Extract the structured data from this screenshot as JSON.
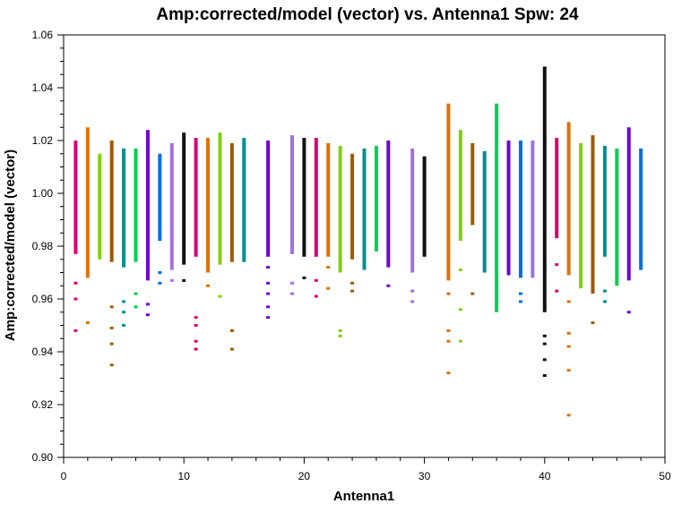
{
  "chart_data": {
    "type": "scatter",
    "title": "Amp:corrected/model (vector) vs. Antenna1 Spw: 24",
    "xlabel": "Antenna1",
    "ylabel": "Amp:corrected/model (vector)",
    "xlim": [
      0,
      50
    ],
    "ylim": [
      0.9,
      1.06
    ],
    "x_ticks": [
      "0",
      "10",
      "20",
      "30",
      "40",
      "50"
    ],
    "y_ticks": [
      "0.90",
      "0.92",
      "0.94",
      "0.96",
      "0.98",
      "1.00",
      "1.02",
      "1.04",
      "1.06"
    ],
    "grid": false,
    "antennas": [
      {
        "x": 1,
        "color": "#d9006e",
        "bar": [
          0.977,
          1.02
        ],
        "points": [
          0.948,
          0.96,
          0.966
        ]
      },
      {
        "x": 2,
        "color": "#e07000",
        "bar": [
          0.968,
          1.025
        ],
        "points": [
          0.951
        ]
      },
      {
        "x": 3,
        "color": "#80d010",
        "bar": [
          0.975,
          1.015
        ],
        "points": []
      },
      {
        "x": 4,
        "color": "#a05a00",
        "bar": [
          0.974,
          1.02
        ],
        "points": [
          0.935,
          0.943,
          0.949,
          0.957
        ]
      },
      {
        "x": 5,
        "color": "#009090",
        "bar": [
          0.972,
          1.017
        ],
        "points": [
          0.95,
          0.955,
          0.959
        ]
      },
      {
        "x": 6,
        "color": "#00d050",
        "bar": [
          0.974,
          1.017
        ],
        "points": [
          0.957,
          0.962
        ]
      },
      {
        "x": 7,
        "color": "#7000d0",
        "bar": [
          0.967,
          1.024
        ],
        "points": [
          0.954,
          0.958
        ]
      },
      {
        "x": 8,
        "color": "#0070e0",
        "bar": [
          0.982,
          1.015
        ],
        "points": [
          0.966,
          0.97
        ]
      },
      {
        "x": 9,
        "color": "#a070e0",
        "bar": [
          0.971,
          1.019
        ],
        "points": [
          0.967
        ]
      },
      {
        "x": 10,
        "color": "#111111",
        "bar": [
          0.973,
          1.023
        ],
        "points": [
          0.967
        ]
      },
      {
        "x": 11,
        "color": "#d9006e",
        "bar": [
          0.976,
          1.021
        ],
        "points": [
          0.941,
          0.944,
          0.95,
          0.953
        ]
      },
      {
        "x": 12,
        "color": "#e07000",
        "bar": [
          0.97,
          1.021
        ],
        "points": [
          0.965
        ]
      },
      {
        "x": 13,
        "color": "#80d010",
        "bar": [
          0.973,
          1.023
        ],
        "points": [
          0.961
        ]
      },
      {
        "x": 14,
        "color": "#a05a00",
        "bar": [
          0.974,
          1.019
        ],
        "points": [
          0.941,
          0.948
        ]
      },
      {
        "x": 15,
        "color": "#009090",
        "bar": [
          0.974,
          1.021
        ],
        "points": []
      },
      {
        "x": 17,
        "color": "#7000d0",
        "bar": [
          0.976,
          1.02
        ],
        "points": [
          0.953,
          0.957,
          0.962,
          0.966,
          0.972
        ]
      },
      {
        "x": 19,
        "color": "#a070e0",
        "bar": [
          0.977,
          1.022
        ],
        "points": [
          0.962,
          0.966
        ]
      },
      {
        "x": 20,
        "color": "#111111",
        "bar": [
          0.976,
          1.021
        ],
        "points": [
          0.968
        ]
      },
      {
        "x": 21,
        "color": "#d9006e",
        "bar": [
          0.976,
          1.021
        ],
        "points": [
          0.961,
          0.967
        ]
      },
      {
        "x": 22,
        "color": "#e07000",
        "bar": [
          0.976,
          1.019
        ],
        "points": [
          0.964,
          0.972
        ]
      },
      {
        "x": 23,
        "color": "#80d010",
        "bar": [
          0.97,
          1.018
        ],
        "points": [
          0.946,
          0.948
        ]
      },
      {
        "x": 24,
        "color": "#a05a00",
        "bar": [
          0.975,
          1.015
        ],
        "points": [
          0.963,
          0.966
        ]
      },
      {
        "x": 25,
        "color": "#009090",
        "bar": [
          0.971,
          1.017
        ],
        "points": []
      },
      {
        "x": 26,
        "color": "#00d050",
        "bar": [
          0.978,
          1.018
        ],
        "points": []
      },
      {
        "x": 27,
        "color": "#7000d0",
        "bar": [
          0.972,
          1.02
        ],
        "points": [
          0.965
        ]
      },
      {
        "x": 29,
        "color": "#a070e0",
        "bar": [
          0.97,
          1.017
        ],
        "points": [
          0.959,
          0.963
        ]
      },
      {
        "x": 30,
        "color": "#111111",
        "bar": [
          0.976,
          1.014
        ],
        "points": []
      },
      {
        "x": 32,
        "color": "#e07000",
        "bar": [
          0.967,
          1.034
        ],
        "points": [
          0.932,
          0.944,
          0.948,
          0.962
        ]
      },
      {
        "x": 33,
        "color": "#80d010",
        "bar": [
          0.982,
          1.024
        ],
        "points": [
          0.944,
          0.956,
          0.971
        ]
      },
      {
        "x": 34,
        "color": "#a05a00",
        "bar": [
          0.988,
          1.019
        ],
        "points": [
          0.962
        ]
      },
      {
        "x": 35,
        "color": "#009090",
        "bar": [
          0.97,
          1.016
        ],
        "points": []
      },
      {
        "x": 36,
        "color": "#00d050",
        "bar": [
          0.955,
          1.034
        ],
        "points": []
      },
      {
        "x": 37,
        "color": "#7000d0",
        "bar": [
          0.969,
          1.02
        ],
        "points": []
      },
      {
        "x": 38,
        "color": "#0070e0",
        "bar": [
          0.968,
          1.02
        ],
        "points": [
          0.959,
          0.962
        ]
      },
      {
        "x": 39,
        "color": "#a070e0",
        "bar": [
          0.968,
          1.02
        ],
        "points": []
      },
      {
        "x": 40,
        "color": "#111111",
        "bar": [
          0.955,
          1.048
        ],
        "points": [
          0.931,
          0.937,
          0.943,
          0.946
        ]
      },
      {
        "x": 41,
        "color": "#d9006e",
        "bar": [
          0.983,
          1.021
        ],
        "points": [
          0.963,
          0.973
        ]
      },
      {
        "x": 42,
        "color": "#e07000",
        "bar": [
          0.969,
          1.027
        ],
        "points": [
          0.916,
          0.933,
          0.942,
          0.947,
          0.959
        ]
      },
      {
        "x": 43,
        "color": "#80d010",
        "bar": [
          0.964,
          1.019
        ],
        "points": []
      },
      {
        "x": 44,
        "color": "#a05a00",
        "bar": [
          0.962,
          1.022
        ],
        "points": [
          0.951
        ]
      },
      {
        "x": 45,
        "color": "#009090",
        "bar": [
          0.976,
          1.018
        ],
        "points": [
          0.959,
          0.963
        ]
      },
      {
        "x": 46,
        "color": "#00d050",
        "bar": [
          0.965,
          1.017
        ],
        "points": []
      },
      {
        "x": 47,
        "color": "#7000d0",
        "bar": [
          0.967,
          1.025
        ],
        "points": [
          0.955
        ]
      },
      {
        "x": 48,
        "color": "#0070e0",
        "bar": [
          0.971,
          1.017
        ],
        "points": []
      }
    ]
  }
}
